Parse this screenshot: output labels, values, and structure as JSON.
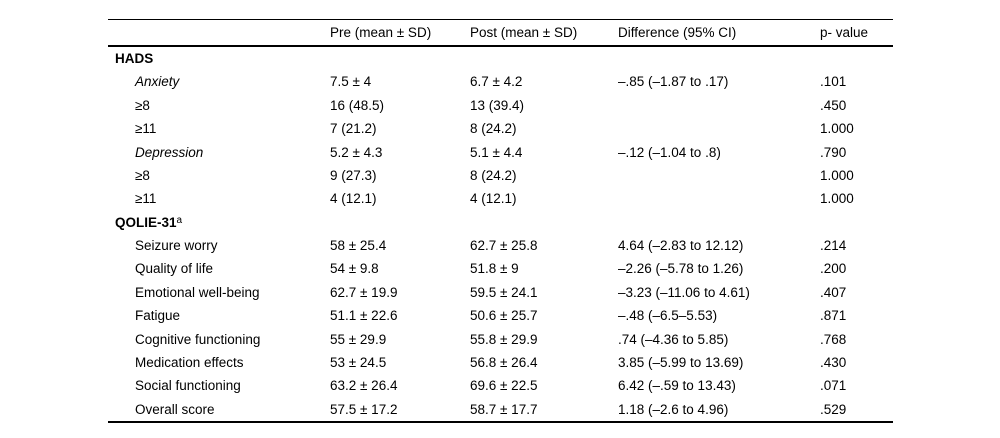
{
  "page": {
    "background": "#ffffff",
    "text_color": "#000000",
    "rule_color": "#000000"
  },
  "table": {
    "columns": [
      "",
      "Pre (mean ± SD)",
      "Post (mean ± SD)",
      "Difference (95% CI)",
      "p- value"
    ],
    "rows": [
      {
        "label": "HADS",
        "sup": "",
        "pre": "",
        "post": "",
        "diff": "",
        "p": ""
      },
      {
        "label": "Anxiety",
        "sup": "",
        "pre": "7.5 ± 4",
        "post": "6.7 ± 4.2",
        "diff": "–.85 (–1.87 to .17)",
        "p": ".101"
      },
      {
        "label": "≥8",
        "sup": "",
        "pre": "16 (48.5)",
        "post": "13 (39.4)",
        "diff": "",
        "p": ".450"
      },
      {
        "label": "≥11",
        "sup": "",
        "pre": "7 (21.2)",
        "post": "8 (24.2)",
        "diff": "",
        "p": "1.000"
      },
      {
        "label": "Depression",
        "sup": "",
        "pre": "5.2 ± 4.3",
        "post": "5.1 ± 4.4",
        "diff": "–.12 (–1.04 to .8)",
        "p": ".790"
      },
      {
        "label": "≥8",
        "sup": "",
        "pre": "9 (27.3)",
        "post": "8 (24.2)",
        "diff": "",
        "p": "1.000"
      },
      {
        "label": "≥11",
        "sup": "",
        "pre": "4 (12.1)",
        "post": "4 (12.1)",
        "diff": "",
        "p": "1.000"
      },
      {
        "label": "QOLIE-31",
        "sup": "a",
        "pre": "",
        "post": "",
        "diff": "",
        "p": ""
      },
      {
        "label": "Seizure worry",
        "sup": "",
        "pre": "58 ± 25.4",
        "post": "62.7 ± 25.8",
        "diff": "4.64 (–2.83 to 12.12)",
        "p": ".214"
      },
      {
        "label": "Quality of life",
        "sup": "",
        "pre": "54 ± 9.8",
        "post": "51.8 ± 9",
        "diff": "–2.26 (–5.78 to 1.26)",
        "p": ".200"
      },
      {
        "label": "Emotional well-being",
        "sup": "",
        "pre": "62.7 ± 19.9",
        "post": "59.5 ± 24.1",
        "diff": "–3.23 (–11.06 to 4.61)",
        "p": ".407"
      },
      {
        "label": "Fatigue",
        "sup": "",
        "pre": "51.1 ± 22.6",
        "post": "50.6 ± 25.7",
        "diff": "–.48 (–6.5–5.53)",
        "p": ".871"
      },
      {
        "label": "Cognitive functioning",
        "sup": "",
        "pre": "55 ± 29.9",
        "post": "55.8 ± 29.9",
        "diff": ".74 (–4.36 to 5.85)",
        "p": ".768"
      },
      {
        "label": "Medication effects",
        "sup": "",
        "pre": "53 ± 24.5",
        "post": "56.8 ± 26.4",
        "diff": "3.85 (–5.99 to 13.69)",
        "p": ".430"
      },
      {
        "label": "Social functioning",
        "sup": "",
        "pre": "63.2 ± 26.4",
        "post": "69.6 ± 22.5",
        "diff": "6.42 (–.59 to 13.43)",
        "p": ".071"
      },
      {
        "label": "Overall score",
        "sup": "",
        "pre": "57.5 ± 17.2",
        "post": "58.7 ± 17.7",
        "diff": "1.18 (–2.6 to 4.96)",
        "p": ".529"
      }
    ]
  }
}
